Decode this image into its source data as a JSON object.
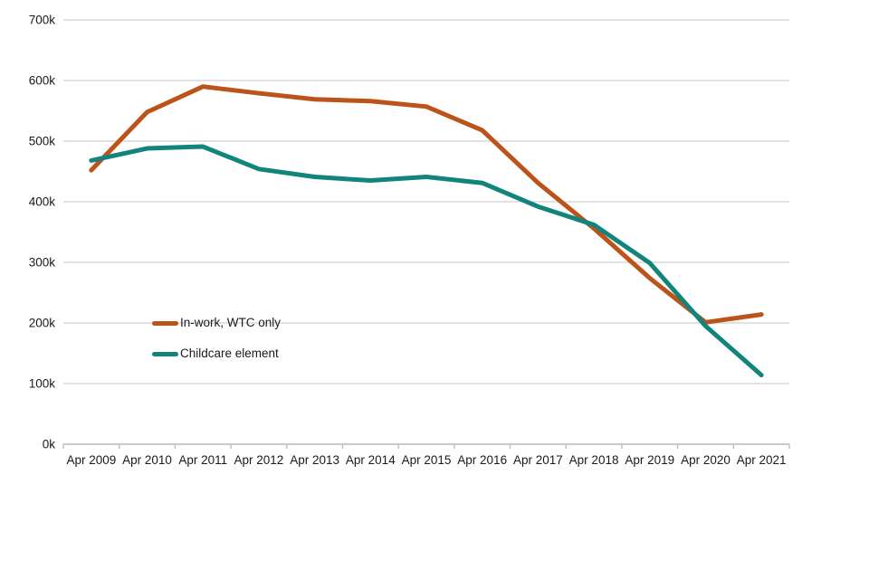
{
  "chart_data": {
    "type": "line",
    "title": "",
    "unit": "thousands (k)",
    "x_categories": [
      "Apr 2009",
      "Apr 2010",
      "Apr 2011",
      "Apr 2012",
      "Apr 2013",
      "Apr 2014",
      "Apr 2015",
      "Apr 2016",
      "Apr 2017",
      "Apr 2018",
      "Apr 2019",
      "Apr 2020",
      "Apr 2021"
    ],
    "series": [
      {
        "name": "In-work, WTC only",
        "color": "#bc541a",
        "values": [
          452,
          548,
          590,
          579,
          569,
          566,
          557,
          518,
          431,
          356,
          274,
          201,
          214
        ]
      },
      {
        "name": "Childcare element",
        "color": "#11857c",
        "values": [
          468,
          488,
          491,
          454,
          441,
          435,
          441,
          431,
          392,
          362,
          299,
          195,
          114
        ]
      }
    ],
    "y_axis": {
      "min": 0,
      "max": 700,
      "step": 100,
      "tick_labels": [
        "0k",
        "100k",
        "200k",
        "300k",
        "400k",
        "500k",
        "600k",
        "700k"
      ]
    },
    "x_axis": {
      "labels_between_ticks": true
    },
    "legend": {
      "position": "inside-plot-left",
      "entries": [
        "In-work, WTC only",
        "Childcare element"
      ]
    },
    "grid": "horizontal",
    "colors": {
      "gridline": "#d9d9d9",
      "axis_line": "#bfbfbf",
      "text": "#1a1a1a",
      "background": "#ffffff"
    }
  }
}
